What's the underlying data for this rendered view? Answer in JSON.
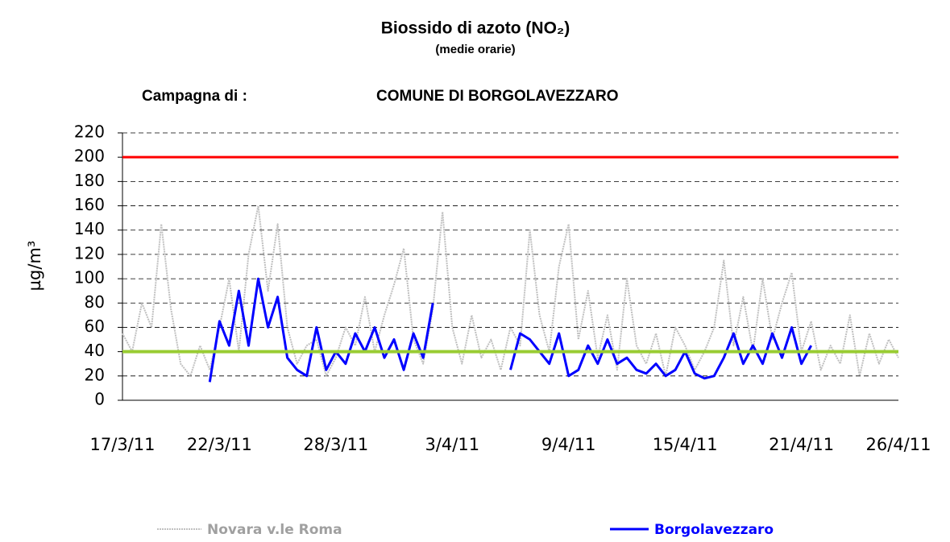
{
  "chart_data": {
    "type": "line",
    "title": "Biossido di azoto (NO₂)",
    "subtitle": "(medie orarie)",
    "annotations": [
      "Campagna di :",
      "COMUNE DI BORGOLAVEZZARO"
    ],
    "y_label": "µg/m³",
    "x": [
      0,
      0.5,
      1,
      1.5,
      2,
      2.5,
      3,
      3.5,
      4,
      4.5,
      5,
      5.5,
      6,
      6.5,
      7,
      7.5,
      8,
      8.5,
      9,
      9.5,
      10,
      10.5,
      11,
      11.5,
      12,
      12.5,
      13,
      13.5,
      14,
      14.5,
      15,
      15.5,
      16,
      16.5,
      17,
      17.5,
      18,
      18.5,
      19,
      19.5,
      20,
      20.5,
      21,
      21.5,
      22,
      22.5,
      23,
      23.5,
      24,
      24.5,
      25,
      25.5,
      26,
      26.5,
      27,
      27.5,
      28,
      28.5,
      29,
      29.5,
      30,
      30.5,
      31,
      31.5,
      32,
      32.5,
      33,
      33.5,
      34,
      34.5,
      35,
      35.5,
      36,
      36.5,
      37,
      37.5,
      38,
      38.5,
      39,
      39.5,
      40
    ],
    "series": [
      {
        "name": "Novara v.le Roma",
        "color": "#c0c0c0",
        "values": [
          55,
          40,
          80,
          60,
          145,
          75,
          30,
          20,
          45,
          25,
          60,
          100,
          40,
          120,
          160,
          90,
          145,
          60,
          30,
          45,
          50,
          20,
          35,
          60,
          45,
          85,
          40,
          70,
          95,
          125,
          50,
          30,
          75,
          155,
          60,
          30,
          70,
          35,
          50,
          25,
          60,
          45,
          140,
          70,
          40,
          110,
          145,
          50,
          90,
          35,
          70,
          25,
          100,
          45,
          30,
          55,
          20,
          60,
          45,
          25,
          40,
          60,
          115,
          45,
          85,
          40,
          100,
          50,
          80,
          105,
          40,
          65,
          25,
          45,
          30,
          70,
          20,
          55,
          30,
          50,
          35
        ]
      },
      {
        "name": "Borgolavezzaro",
        "color": "#0000ff",
        "values": [
          null,
          null,
          null,
          null,
          null,
          null,
          null,
          null,
          null,
          15,
          65,
          45,
          90,
          45,
          100,
          60,
          85,
          35,
          25,
          20,
          60,
          25,
          40,
          30,
          55,
          40,
          60,
          35,
          50,
          25,
          55,
          35,
          80,
          null,
          null,
          null,
          null,
          null,
          null,
          null,
          25,
          55,
          50,
          40,
          30,
          55,
          20,
          25,
          45,
          30,
          50,
          30,
          35,
          25,
          22,
          30,
          20,
          25,
          40,
          22,
          18,
          20,
          35,
          55,
          30,
          45,
          30,
          55,
          35,
          60,
          30,
          45,
          null,
          null,
          null,
          null,
          null,
          null,
          null,
          null,
          null
        ]
      }
    ],
    "reference_lines": [
      {
        "value": 200,
        "color": "#ff0000"
      },
      {
        "value": 40,
        "color": "#99cc33"
      }
    ],
    "xlim": [
      0,
      40
    ],
    "xticks": [
      {
        "value": 0,
        "label": "17/3/11"
      },
      {
        "value": 5,
        "label": "22/3/11"
      },
      {
        "value": 11,
        "label": "28/3/11"
      },
      {
        "value": 17,
        "label": "3/4/11"
      },
      {
        "value": 23,
        "label": "9/4/11"
      },
      {
        "value": 29,
        "label": "15/4/11"
      },
      {
        "value": 35,
        "label": "21/4/11"
      },
      {
        "value": 40,
        "label": "26/4/11"
      }
    ],
    "ylim": [
      0,
      220
    ],
    "yticks": [
      0,
      20,
      40,
      60,
      80,
      100,
      120,
      140,
      160,
      180,
      200,
      220
    ],
    "grid": true,
    "legend": "bottom"
  }
}
